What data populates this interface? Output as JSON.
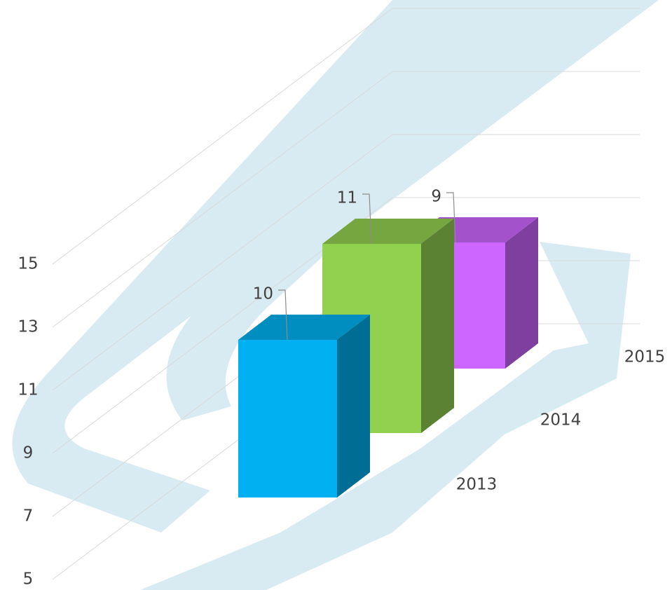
{
  "chart_data": {
    "type": "bar3d",
    "categories": [
      "2013",
      "2014",
      "2015"
    ],
    "values": [
      10,
      11,
      9
    ],
    "colors": [
      "#00b0f0",
      "#92d050",
      "#cc66ff"
    ],
    "ylim": [
      5,
      15
    ],
    "yticks": [
      5,
      7,
      9,
      11,
      13,
      15
    ],
    "grid": true
  }
}
